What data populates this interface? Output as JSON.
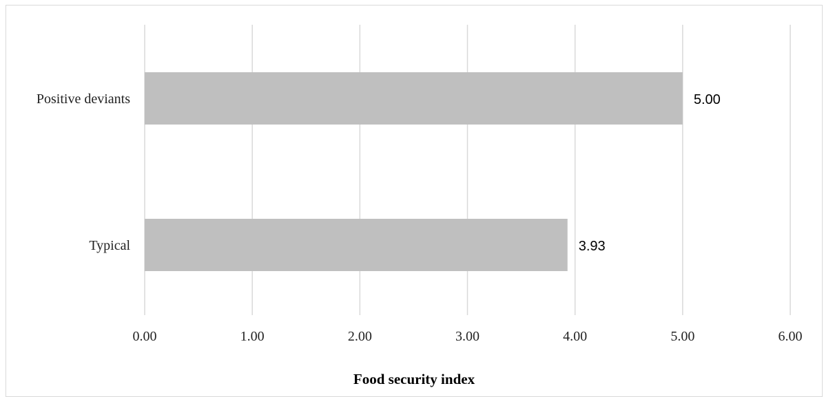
{
  "chart_data": {
    "type": "bar",
    "orientation": "horizontal",
    "title": "",
    "xlabel": "Food security index",
    "ylabel": "",
    "categories": [
      "Positive deviants",
      "Typical"
    ],
    "values": [
      5.0,
      3.93
    ],
    "value_labels": [
      "5.00",
      "3.93"
    ],
    "xlim": [
      0,
      6
    ],
    "xticks": [
      0,
      1,
      2,
      3,
      4,
      5,
      6
    ],
    "xtick_labels": [
      "0.00",
      "1.00",
      "2.00",
      "3.00",
      "4.00",
      "5.00",
      "6.00"
    ],
    "grid": "vertical",
    "legend": "none",
    "bar_color": "#bfbfbf",
    "grid_color": "#d9d9d9"
  }
}
